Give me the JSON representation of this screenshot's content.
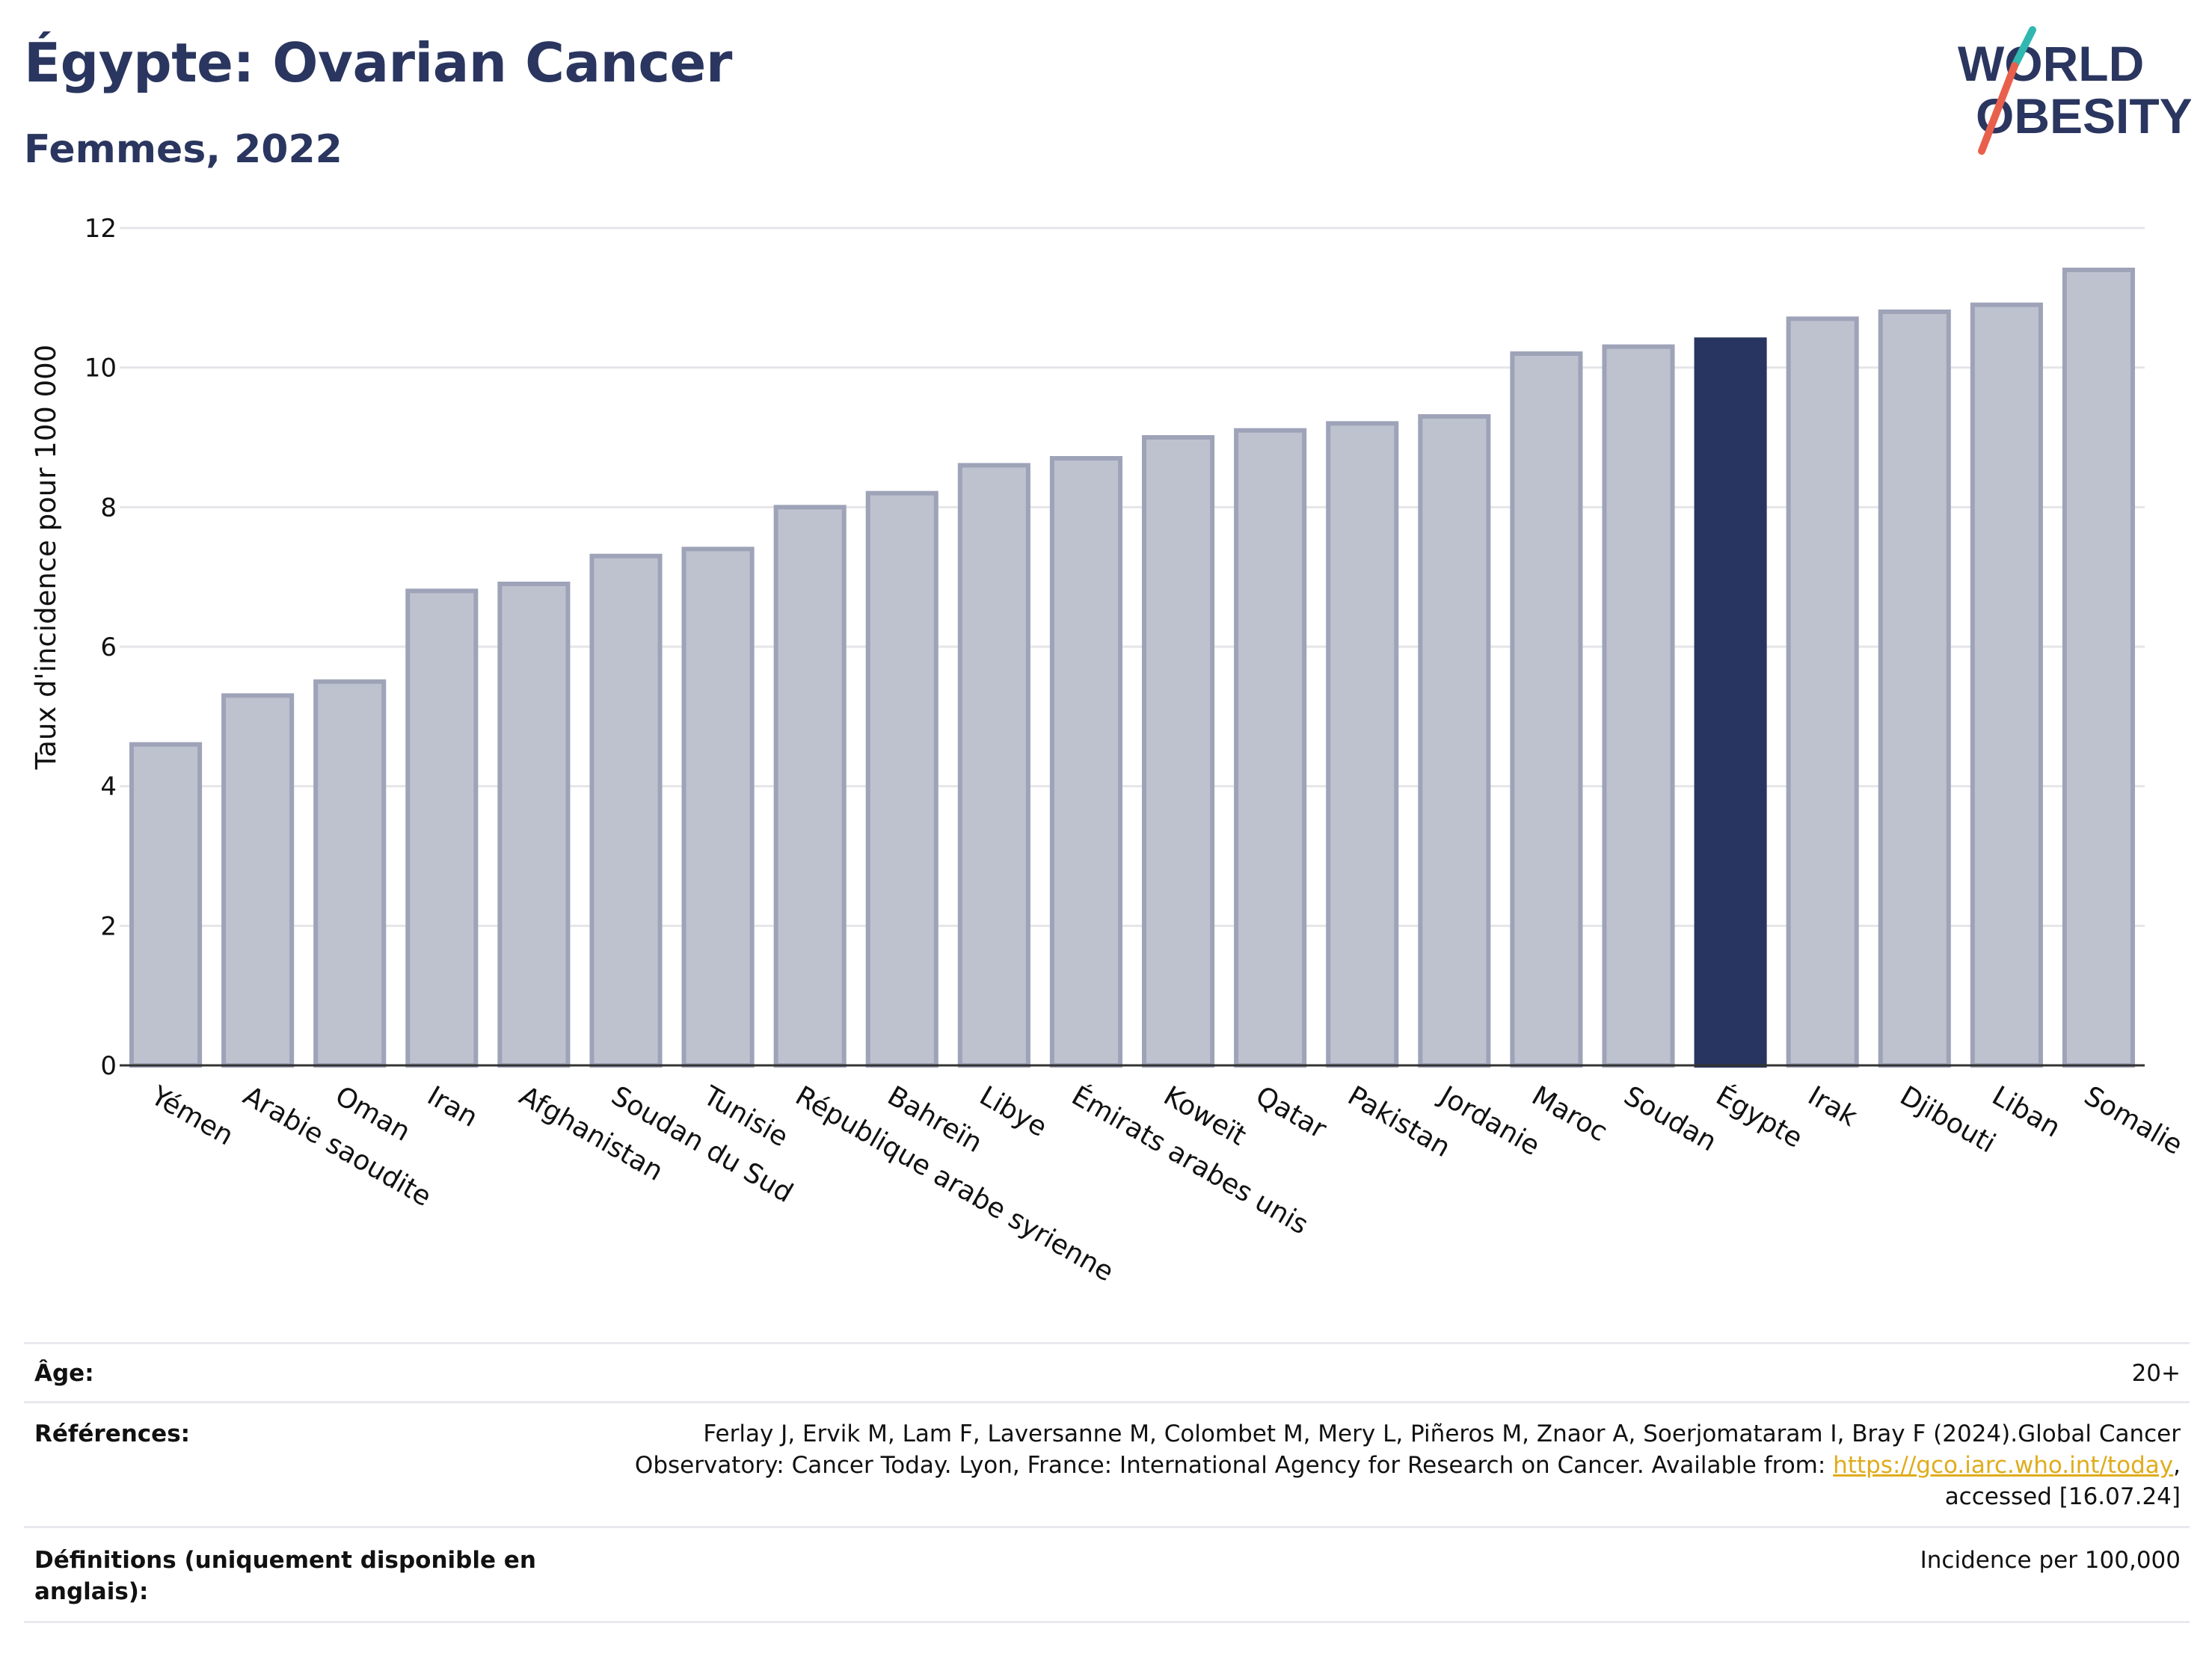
{
  "header": {
    "title": "Égypte: Ovarian Cancer",
    "subtitle": "Femmes, 2022"
  },
  "logo": {
    "line1": "WORLD",
    "line2": "OBESITY",
    "accent_teal": "#2fb7b0",
    "accent_red": "#e8604c"
  },
  "chart_data": {
    "type": "bar",
    "title": "Égypte: Ovarian Cancer",
    "subtitle": "Femmes, 2022",
    "xlabel": "",
    "ylabel": "Taux d'incidence pour 100 000",
    "ylim": [
      0,
      12
    ],
    "yticks": [
      0,
      2,
      4,
      6,
      8,
      10,
      12
    ],
    "grid": true,
    "highlight": "Égypte",
    "colors": {
      "bar": "#bec2cf",
      "bar_border": "#9ea3b8",
      "highlight": "#283560"
    },
    "categories": [
      "Yémen",
      "Arabie saoudite",
      "Oman",
      "Iran",
      "Afghanistan",
      "Soudan du Sud",
      "Tunisie",
      "République arabe syrienne",
      "Bahreïn",
      "Libye",
      "Émirats arabes unis",
      "Koweït",
      "Qatar",
      "Pakistan",
      "Jordanie",
      "Maroc",
      "Soudan",
      "Égypte",
      "Irak",
      "Djibouti",
      "Liban",
      "Somalie"
    ],
    "values": [
      4.6,
      5.3,
      5.5,
      6.8,
      6.9,
      7.3,
      7.4,
      8.0,
      8.2,
      8.6,
      8.7,
      9.0,
      9.1,
      9.2,
      9.3,
      10.2,
      10.3,
      10.4,
      10.7,
      10.8,
      10.9,
      11.4
    ]
  },
  "footer": {
    "age_label": "Âge:",
    "age_value": "20+",
    "refs_label": "Références:",
    "refs_text": "Ferlay J, Ervik M, Lam F, Laversanne M, Colombet M, Mery L, Piñeros M, Znaor A, Soerjomataram I, Bray F (2024).Global Cancer Observatory: Cancer Today. Lyon, France: International Agency for Research on Cancer. Available from: ",
    "refs_link": "https://gco.iarc.who.int/today",
    "refs_tail": ", accessed [16.07.24]",
    "defs_label": "Définitions (uniquement disponible en anglais):",
    "defs_value": "Incidence per 100,000"
  }
}
